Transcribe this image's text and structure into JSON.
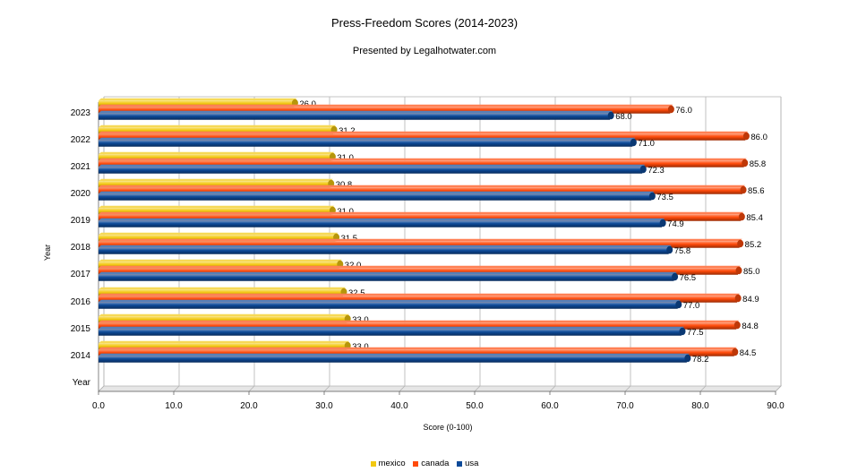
{
  "chart_data": {
    "type": "bar",
    "orientation": "horizontal",
    "title": "Press-Freedom Scores (2014-2023)",
    "subtitle": "Presented by Legalhotwater.com",
    "xlabel": "Score (0-100)",
    "ylabel": "Year",
    "xlim": [
      0,
      90
    ],
    "xticks": [
      "0.0",
      "10.0",
      "20.0",
      "30.0",
      "40.0",
      "50.0",
      "60.0",
      "70.0",
      "80.0",
      "90.0"
    ],
    "categories": [
      "2023",
      "2022",
      "2021",
      "2020",
      "2019",
      "2018",
      "2017",
      "2016",
      "2015",
      "2014",
      "Year"
    ],
    "series": [
      {
        "name": "mexico",
        "color": "#f2c80f",
        "values": [
          26.0,
          31.2,
          31.0,
          30.8,
          31.0,
          31.5,
          32.0,
          32.5,
          33.0,
          33.0,
          null
        ],
        "labels": [
          "26.0",
          "31.2",
          "31.0",
          "30.8",
          "31.0",
          "31.5",
          "32.0",
          "32.5",
          "33.0",
          "33.0",
          ""
        ]
      },
      {
        "name": "canada",
        "color": "#ff4a0a",
        "values": [
          76.0,
          86.0,
          85.8,
          85.6,
          85.4,
          85.2,
          85.0,
          84.9,
          84.8,
          84.5,
          null
        ],
        "labels": [
          "76.0",
          "86.0",
          "85.8",
          "85.6",
          "85.4",
          "85.2",
          "85.0",
          "84.9",
          "84.8",
          "84.5",
          ""
        ]
      },
      {
        "name": "usa",
        "color": "#0d4a99",
        "values": [
          68.0,
          71.0,
          72.3,
          73.5,
          74.9,
          75.8,
          76.5,
          77.0,
          77.5,
          78.2,
          null
        ],
        "labels": [
          "68.0",
          "71.0",
          "72.3",
          "73.5",
          "74.9",
          "75.8",
          "76.5",
          "77.0",
          "77.5",
          "78.2",
          ""
        ]
      }
    ],
    "legend_position": "bottom",
    "grid": true
  }
}
